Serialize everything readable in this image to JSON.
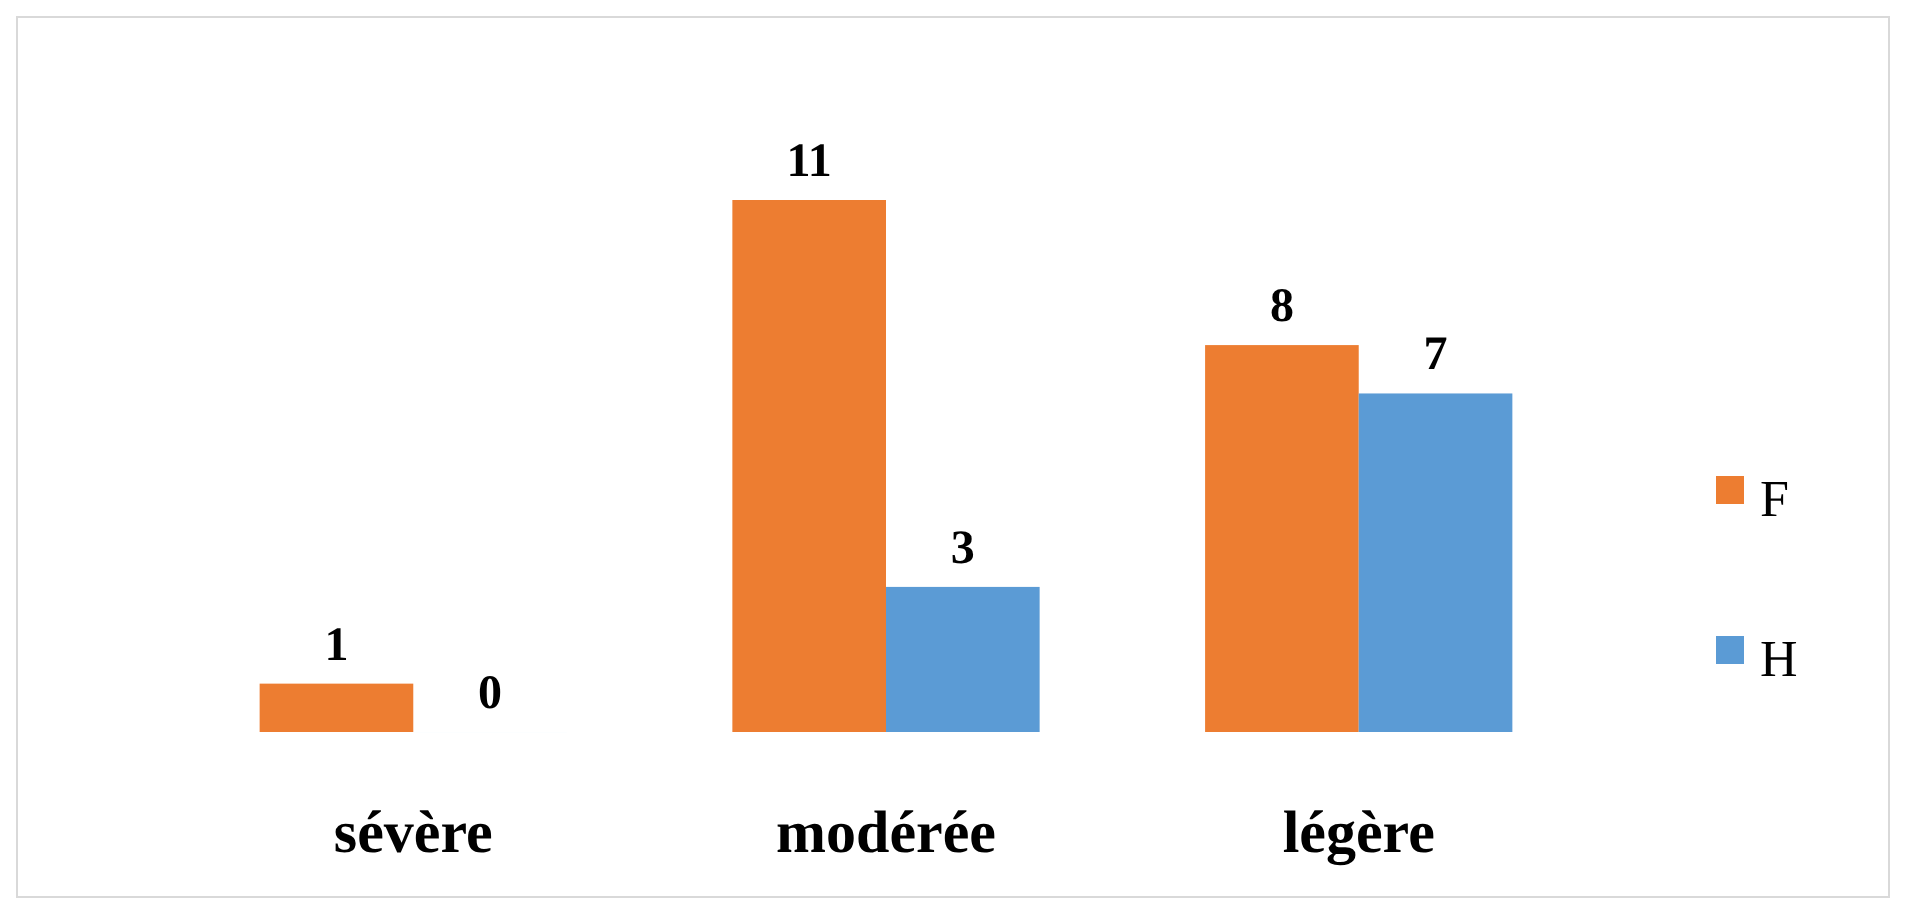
{
  "chart_data": {
    "type": "bar",
    "categories": [
      "sévère",
      "modérée",
      "légère"
    ],
    "series": [
      {
        "name": "F",
        "color": "#ed7d31",
        "values": [
          1,
          11,
          8
        ]
      },
      {
        "name": "H",
        "color": "#5b9bd5",
        "values": [
          0,
          3,
          7
        ]
      }
    ],
    "data_labels": true,
    "legend": "right",
    "grid": false
  }
}
